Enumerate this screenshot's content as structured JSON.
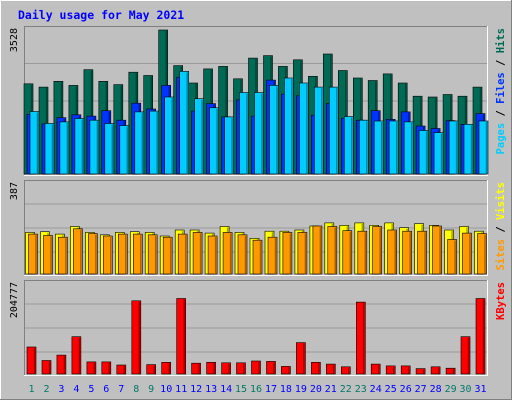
{
  "chart_data": {
    "type": "bar",
    "title": "Daily usage for May 2021",
    "categories": [
      "1",
      "2",
      "3",
      "4",
      "5",
      "6",
      "7",
      "8",
      "9",
      "10",
      "11",
      "12",
      "13",
      "14",
      "15",
      "16",
      "17",
      "18",
      "19",
      "20",
      "21",
      "22",
      "23",
      "24",
      "25",
      "26",
      "27",
      "28",
      "29",
      "30",
      "31"
    ],
    "weekend_days": [
      "1",
      "2",
      "8",
      "9",
      "15",
      "16",
      "22",
      "23",
      "29",
      "30"
    ],
    "panels": [
      {
        "name": "hits-files-pages",
        "ymax_label": "3528",
        "ylim": [
          0,
          3528
        ],
        "series": [
          {
            "name": "Hits",
            "color": "#006b54",
            "values": [
              2180,
              2100,
              2240,
              2140,
              2520,
              2240,
              2160,
              2460,
              2380,
              3480,
              2620,
              2200,
              2540,
              2600,
              2300,
              2800,
              2860,
              2600,
              2760,
              2360,
              2900,
              2500,
              2320,
              2260,
              2420,
              2200,
              1880,
              1860,
              1920,
              1880,
              2100
            ]
          },
          {
            "name": "Files",
            "color": "#0033ff",
            "values": [
              1440,
              1210,
              1360,
              1430,
              1400,
              1530,
              1300,
              1710,
              1570,
              2140,
              2340,
              1520,
              1700,
              1380,
              1790,
              1400,
              2270,
              1930,
              1890,
              1420,
              1700,
              1350,
              1300,
              1530,
              1320,
              1500,
              1160,
              1100,
              1290,
              1200,
              1460
            ]
          },
          {
            "name": "Pages",
            "color": "#00ccff",
            "values": [
              1510,
              1220,
              1260,
              1340,
              1300,
              1220,
              1170,
              1500,
              1520,
              1860,
              2480,
              1820,
              1600,
              1380,
              1970,
              1970,
              2140,
              2320,
              2200,
              2100,
              2100,
              1390,
              1300,
              1280,
              1280,
              1260,
              1050,
              1000,
              1280,
              1200,
              1280
            ]
          }
        ]
      },
      {
        "name": "visits-sites",
        "ymax_label": "387",
        "ylim": [
          0,
          387
        ],
        "series": [
          {
            "name": "Visits",
            "color": "#ffff00",
            "values": [
              175,
              178,
              168,
              200,
              175,
              165,
              175,
              178,
              175,
              160,
              185,
              185,
              172,
              200,
              175,
              150,
              180,
              180,
              185,
              202,
              215,
              205,
              215,
              205,
              215,
              195,
              212,
              205,
              185,
              200,
              180
            ]
          },
          {
            "name": "Sites",
            "color": "#ff9900",
            "values": [
              168,
              162,
              155,
              190,
              170,
              160,
              168,
              168,
              165,
              155,
              168,
              175,
              160,
              175,
              165,
              142,
              155,
              175,
              175,
              202,
              200,
              182,
              180,
              200,
              185,
              180,
              180,
              202,
              145,
              172,
              170
            ]
          }
        ]
      },
      {
        "name": "kbytes",
        "ymax_label": "204777",
        "ylim": [
          0,
          204777
        ],
        "series": [
          {
            "name": "KBytes",
            "color": "#ff0000",
            "values": [
              60000,
              30000,
              42000,
              83000,
              27000,
              27000,
              20000,
              163000,
              21000,
              26000,
              168000,
              24000,
              26000,
              25000,
              25000,
              29000,
              28000,
              17000,
              70000,
              26000,
              22000,
              16000,
              160000,
              22000,
              18000,
              18000,
              12000,
              16000,
              13000,
              83000,
              168000
            ]
          }
        ]
      }
    ],
    "legends": [
      {
        "panel": "hits-files-pages",
        "parts": [
          {
            "text": "Pages",
            "color": "#00ccff"
          },
          {
            "text": " / ",
            "color": "#000000"
          },
          {
            "text": "Files",
            "color": "#0033ff"
          },
          {
            "text": " / ",
            "color": "#000000"
          },
          {
            "text": "Hits",
            "color": "#006b54"
          }
        ]
      },
      {
        "panel": "visits-sites",
        "parts": [
          {
            "text": "Sites",
            "color": "#ff9900"
          },
          {
            "text": " / ",
            "color": "#000000"
          },
          {
            "text": "Visits",
            "color": "#ffff00"
          }
        ]
      },
      {
        "panel": "kbytes",
        "parts": [
          {
            "text": "KBytes",
            "color": "#ff0000"
          }
        ]
      }
    ],
    "colors": {
      "background": "#c0c0c0",
      "title": "#0000ff",
      "weekday_label": "#0000ff",
      "weekend_label": "#00796b",
      "axis_label": "#000000"
    },
    "grid": true
  }
}
